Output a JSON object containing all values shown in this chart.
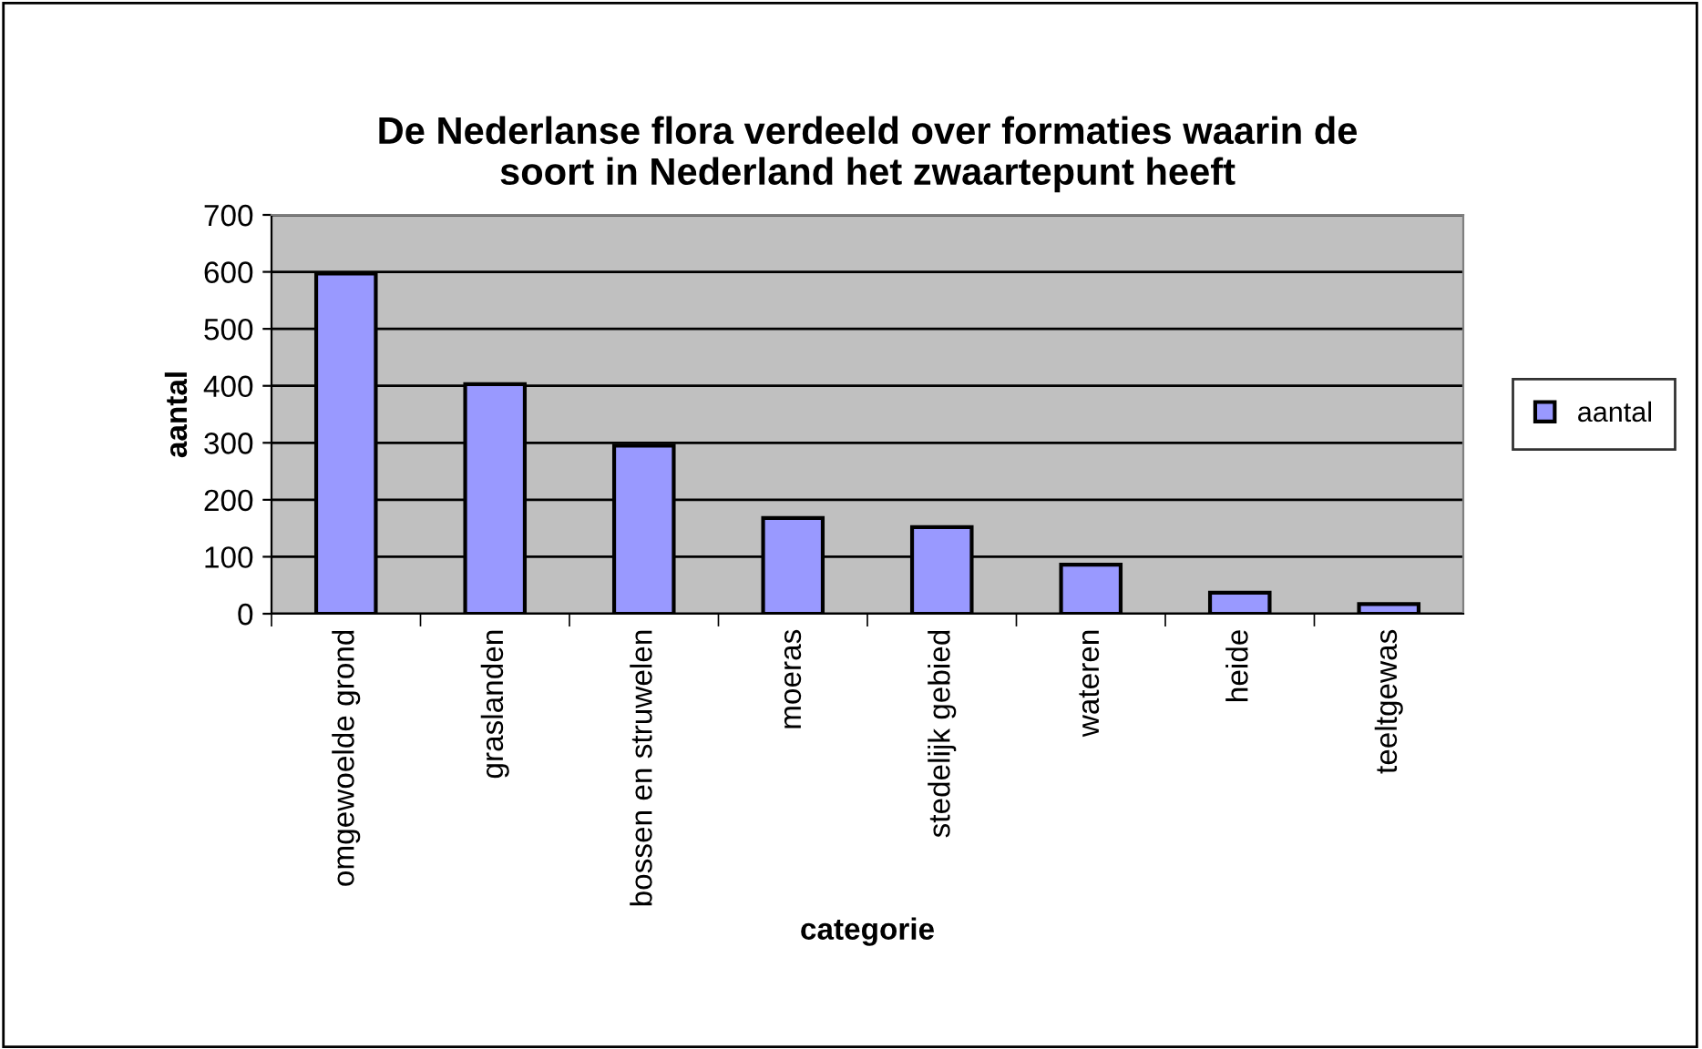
{
  "chart_data": {
    "type": "bar",
    "title": "De Nederlanse flora verdeeld over formaties waarin de\nsoort in Nederland het zwaartepunt heeft",
    "xlabel": "categorie",
    "ylabel": "aantal",
    "categories": [
      "omgewoelde grond",
      "graslanden",
      "bossen en struwelen",
      "moeras",
      "stedelijk gebied",
      "wateren",
      "heide",
      "teeltgewas"
    ],
    "series": [
      {
        "name": "aantal",
        "color": "#9999ff",
        "values": [
          597,
          403,
          295,
          168,
          152,
          86,
          37,
          17
        ]
      }
    ],
    "ylim": [
      0,
      700
    ],
    "yticks": [
      0,
      100,
      200,
      300,
      400,
      500,
      600,
      700
    ],
    "grid": "y",
    "legend": "right"
  }
}
